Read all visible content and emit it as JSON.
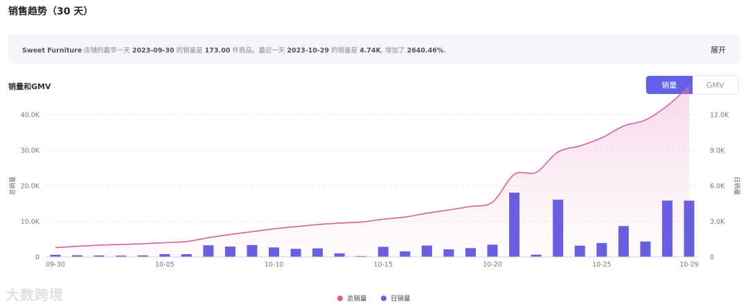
{
  "page": {
    "title": "销售趋势（30 天）",
    "summary": {
      "store": "Sweet Furniture",
      "t1": " 店铺的最早一天 ",
      "start_date": "2023-09-30",
      "t2": " 的销量是 ",
      "start_value": "173.00",
      "t3": " 件商品。最近一天 ",
      "end_date": "2023-10-29",
      "t4": " 的销量是 ",
      "end_value": "4.74K",
      "t5": ", 增加了 ",
      "growth": "2640.46%",
      "t6": "。"
    },
    "expand_label": "展开",
    "chart_title": "销量和GMV",
    "toggle": {
      "active": "销量",
      "inactive": "GMV"
    },
    "watermark": "大数跨境"
  },
  "chart_data": {
    "type": "bar+area",
    "x": [
      "09-30",
      "10-01",
      "10-02",
      "10-03",
      "10-04",
      "10-05",
      "10-06",
      "10-07",
      "10-08",
      "10-09",
      "10-10",
      "10-11",
      "10-12",
      "10-13",
      "10-14",
      "10-15",
      "10-16",
      "10-17",
      "10-18",
      "10-19",
      "10-20",
      "10-21",
      "10-22",
      "10-23",
      "10-24",
      "10-25",
      "10-26",
      "10-27",
      "10-28",
      "10-29"
    ],
    "x_tick_labels": [
      "09-30",
      "10-05",
      "10-10",
      "10-15",
      "10-20",
      "10-25",
      "10-29"
    ],
    "series": [
      {
        "name": "总销量",
        "axis": "left",
        "kind": "area-line",
        "color": "#d45fa0",
        "values": [
          2600,
          3000,
          3300,
          3500,
          3700,
          4000,
          4300,
          5400,
          6300,
          7100,
          7900,
          8500,
          9100,
          9500,
          9800,
          10600,
          11200,
          12300,
          13200,
          14200,
          15400,
          23200,
          23800,
          29500,
          31200,
          33500,
          36800,
          38500,
          42500,
          48000
        ]
      },
      {
        "name": "日销量",
        "axis": "right",
        "kind": "bar",
        "color": "#6a5fdf",
        "values": [
          180,
          140,
          120,
          110,
          130,
          240,
          230,
          980,
          870,
          1000,
          800,
          680,
          720,
          300,
          70,
          850,
          470,
          960,
          640,
          740,
          1030,
          5420,
          190,
          4830,
          950,
          1170,
          2600,
          1300,
          4750,
          4750
        ]
      }
    ],
    "left_axis": {
      "label": "总销量",
      "ticks": [
        "0",
        "10.0K",
        "20.0K",
        "30.0K",
        "40.0K"
      ],
      "ylim": [
        0,
        40000
      ]
    },
    "right_axis": {
      "label": "日销量",
      "ticks": [
        "0",
        "3.0K",
        "6.0K",
        "9.0K",
        "12.0K"
      ],
      "ylim": [
        0,
        12000
      ]
    },
    "grid": true,
    "legend_placement": "bottom-center"
  }
}
